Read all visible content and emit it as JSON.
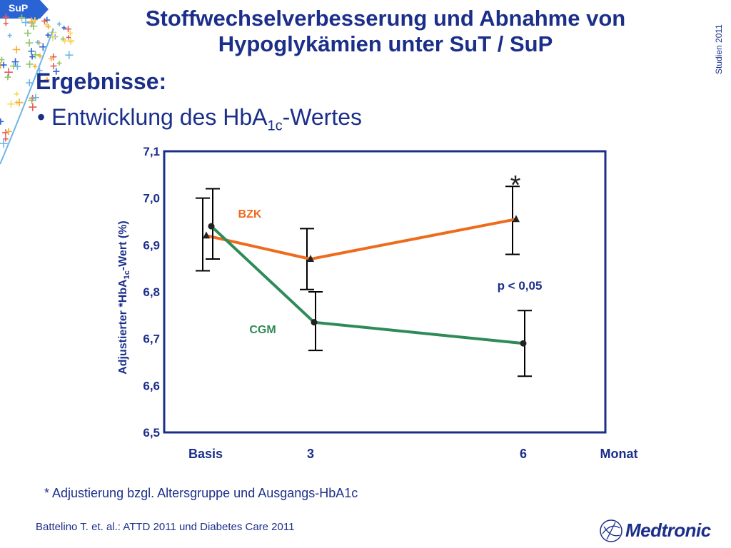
{
  "tag": "SuP",
  "title_line1": "Stoffwechselverbesserung und Abnahme von",
  "title_line2": "Hypoglykämien unter SuT / SuP",
  "side_label": "Studien 2011",
  "heading": "Ergebnisse:",
  "bullet": {
    "prefix": "• Entwicklung des HbA",
    "subscript": "1c",
    "suffix": "-Wertes"
  },
  "footnote": "* Adjustierung bzgl. Altersgruppe und Ausgangs-HbA1c",
  "source": "Battelino T. et. al.: ATTD 2011 und Diabetes Care 2011",
  "logo": "Medtronic",
  "colors": {
    "title": "#1b2f8a",
    "bzk": "#ee6a1c",
    "cgm": "#2e8b57",
    "axis": "#1b2f8a",
    "tag": "#2a63d4"
  },
  "chart_data": {
    "type": "line",
    "ylabel_parts": [
      "Adjustierter *HbA",
      "1c",
      "-Wert (%)"
    ],
    "xlabel": "Monat",
    "categories": [
      "Basis",
      "3",
      "6"
    ],
    "x": [
      0,
      3,
      6
    ],
    "ylim": [
      6.5,
      7.1
    ],
    "yticks": [
      "7,1",
      "7,0",
      "6,9",
      "6,8",
      "6,7",
      "6,6",
      "6,5"
    ],
    "ytick_values": [
      7.1,
      7.0,
      6.9,
      6.8,
      6.7,
      6.6,
      6.5
    ],
    "series": [
      {
        "name": "BZK",
        "values": [
          6.92,
          6.87,
          6.955
        ],
        "error_low": [
          6.845,
          6.805,
          6.88
        ],
        "error_high": [
          7.0,
          6.935,
          7.025
        ],
        "x_offset": [
          -0.07,
          0.0,
          -0.07
        ]
      },
      {
        "name": "CGM",
        "values": [
          6.94,
          6.735,
          6.69
        ],
        "error_low": [
          6.87,
          6.675,
          6.62
        ],
        "error_high": [
          7.02,
          6.8,
          6.76
        ],
        "x_offset": [
          0.0,
          0.05,
          0.03
        ]
      }
    ],
    "annotations": {
      "star": "*",
      "p_value": "p < 0,05"
    },
    "grid": false
  }
}
